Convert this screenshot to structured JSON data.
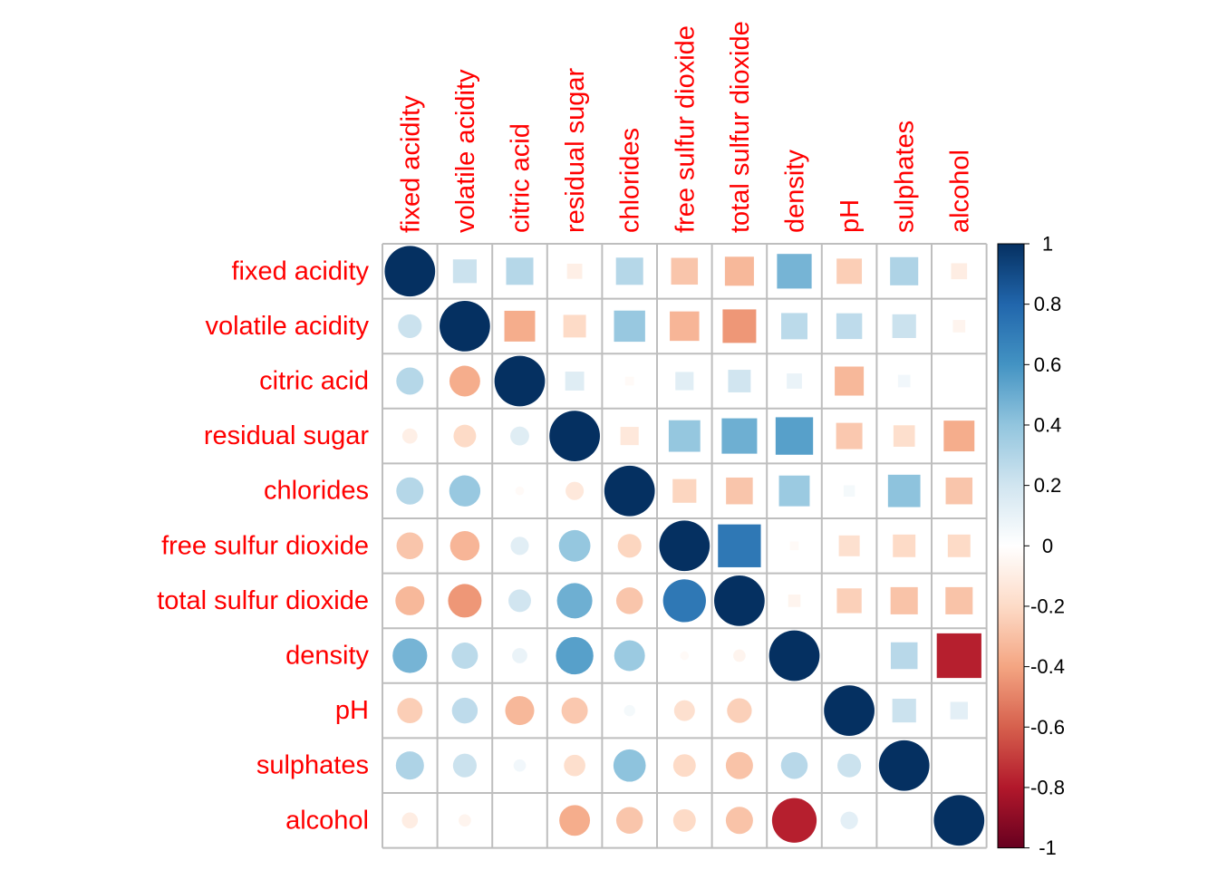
{
  "chart_data": {
    "type": "heatmap",
    "variables": [
      "fixed acidity",
      "volatile acidity",
      "citric acid",
      "residual sugar",
      "chlorides",
      "free sulfur dioxide",
      "total sulfur dioxide",
      "density",
      "pH",
      "sulphates",
      "alcohol"
    ],
    "lower_triangle_glyph": "circle",
    "upper_triangle_glyph": "square",
    "glyph_size_encodes": "absolute correlation",
    "lower_triangle_values": [
      [
        1
      ],
      [
        0.22,
        1
      ],
      [
        0.29,
        -0.37,
        1
      ],
      [
        -0.09,
        -0.2,
        0.14,
        1
      ],
      [
        0.29,
        0.38,
        -0.03,
        -0.13,
        1
      ],
      [
        -0.28,
        -0.34,
        0.13,
        0.39,
        -0.22,
        1
      ],
      [
        -0.33,
        -0.44,
        0.2,
        0.49,
        -0.28,
        0.72,
        1
      ],
      [
        0.47,
        0.27,
        0.09,
        0.55,
        0.37,
        -0.03,
        -0.06,
        1
      ],
      [
        -0.25,
        0.26,
        -0.33,
        -0.27,
        0.05,
        -0.17,
        -0.24,
        0.0,
        1
      ],
      [
        0.31,
        0.22,
        0.06,
        -0.18,
        0.41,
        -0.2,
        -0.29,
        0.28,
        0.22,
        1
      ],
      [
        -0.1,
        -0.06,
        0.0,
        -0.37,
        -0.28,
        -0.2,
        -0.29,
        -0.78,
        0.12,
        0.0,
        1
      ]
    ],
    "colorbar": {
      "range": [
        -1,
        1
      ],
      "ticks": [
        "-1",
        "-0.8",
        "-0.6",
        "-0.4",
        "-0.2",
        "0",
        "0.2",
        "0.4",
        "0.6",
        "0.8",
        "1"
      ],
      "palette": [
        "#67001f",
        "#b2182b",
        "#d6604d",
        "#f4a582",
        "#fddbc7",
        "#ffffff",
        "#d1e5f0",
        "#92c5de",
        "#4393c3",
        "#2166ac",
        "#053061"
      ]
    },
    "grid": true
  }
}
